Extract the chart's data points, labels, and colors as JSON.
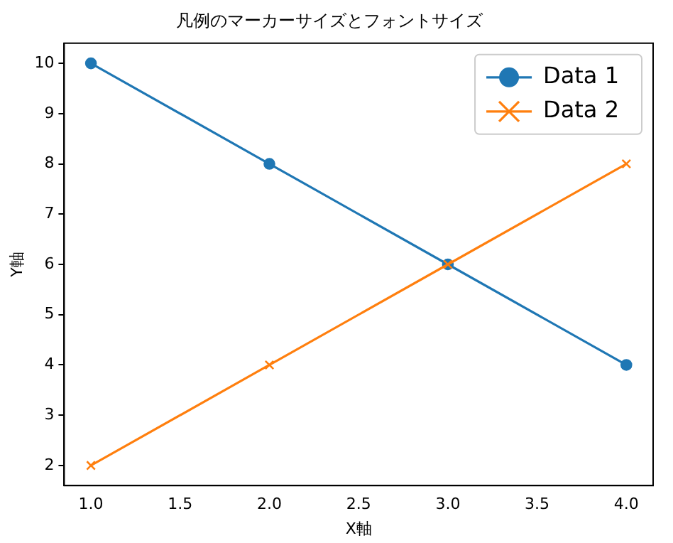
{
  "chart_data": {
    "type": "line",
    "title": "凡例のマーカーサイズとフォントサイズ",
    "xlabel": "X軸",
    "ylabel": "Y軸",
    "x": [
      1,
      2,
      3,
      4
    ],
    "series": [
      {
        "name": "Data 1",
        "color": "#1f77b4",
        "values": [
          10,
          8,
          6,
          4
        ],
        "marker": "circle"
      },
      {
        "name": "Data 2",
        "color": "#ff7f0e",
        "values": [
          2,
          4,
          6,
          8
        ],
        "marker": "cross"
      }
    ],
    "xlim": [
      0.85,
      4.15
    ],
    "ylim": [
      1.6,
      10.4
    ],
    "xticks": [
      {
        "value": 1,
        "label": "1.0"
      },
      {
        "value": 1.5,
        "label": "1.5"
      },
      {
        "value": 2,
        "label": "2.0"
      },
      {
        "value": 2.5,
        "label": "2.5"
      },
      {
        "value": 3,
        "label": "3.0"
      },
      {
        "value": 3.5,
        "label": "3.5"
      },
      {
        "value": 4,
        "label": "4.0"
      }
    ],
    "yticks": [
      2,
      3,
      4,
      5,
      6,
      7,
      8,
      9,
      10
    ],
    "grid": false,
    "legend": "top right",
    "line_style": "solid"
  }
}
